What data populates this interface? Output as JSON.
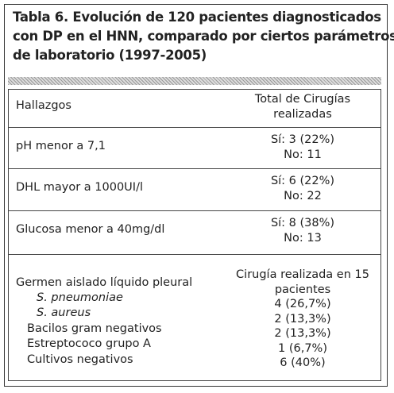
{
  "title_lines": [
    "Tabla 6. Evolución de 120 pacientes diagnosticados",
    "con DP en el HNN, comparado por ciertos parámetros",
    "de laboratorio (1997-2005)"
  ],
  "table": {
    "header": {
      "left": "Hallazgos",
      "right": [
        "Total de Cirugías",
        "realizadas"
      ]
    },
    "rows": [
      {
        "left": [
          "pH menor a 7,1"
        ],
        "right": [
          "Sí: 3 (22%)",
          "No: 11"
        ]
      },
      {
        "left": [
          "DHL mayor a 1000UI/l"
        ],
        "right": [
          "Sí: 6 (22%)",
          "No: 22"
        ]
      },
      {
        "left": [
          "Glucosa menor a 40mg/dl"
        ],
        "right": [
          "Sí: 8 (38%)",
          "No: 13"
        ]
      },
      {
        "left": [
          "Germen aislado líquido pleural",
          "S. pneumoniae",
          "S. aureus",
          "Bacilos gram negativos",
          "Estreptococo grupo A",
          "Cultivos negativos"
        ],
        "right": [
          "Cirugía realizada en 15",
          "pacientes",
          "4 (26,7%)",
          "2 (13,3%)",
          "2 (13,3%)",
          "1 (6,7%)",
          "6 (40%)"
        ]
      }
    ]
  }
}
